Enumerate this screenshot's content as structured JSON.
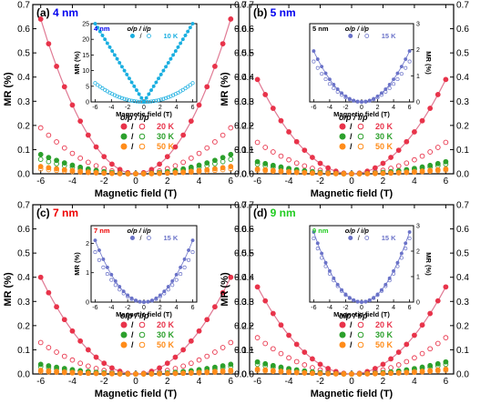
{
  "figure": {
    "ylabel_main": "MR (%)",
    "xlabel_main": "Magnetic field (T)",
    "ylabel_inset": "MR (%)",
    "xlabel_inset": "Magnetic field (T)",
    "legend_header": [
      "o/p",
      "/",
      "i/p"
    ],
    "colors": {
      "red": "#e8334a",
      "green": "#2ca02c",
      "orange": "#ff8c1a",
      "cyan": "#19aee0",
      "blue": "#6a72c8",
      "fit": "#e07a94",
      "title_blue": "#0000ee",
      "title_red": "#ee0000",
      "title_green": "#22cc22"
    }
  },
  "chart_data": [
    {
      "type": "scatter",
      "panel_label": "(a)",
      "thickness": "4 nm",
      "xlabel": "Magnetic field (T)",
      "ylabel": "MR (%)",
      "xlim": [
        -6.5,
        6.5
      ],
      "ylim": [
        0,
        0.7
      ],
      "xticks": [
        -6,
        -4,
        -2,
        0,
        2,
        4,
        6
      ],
      "yticks": [
        0.0,
        0.1,
        0.2,
        0.3,
        0.4,
        0.5,
        0.6,
        0.7
      ],
      "series": [
        {
          "name": "20 K",
          "out_of_plane_mr_at_6T": 0.64,
          "in_plane_mr_at_6T": 0.19
        },
        {
          "name": "30 K",
          "out_of_plane_mr_at_6T": 0.08,
          "in_plane_mr_at_6T": 0.06
        },
        {
          "name": "50 K",
          "out_of_plane_mr_at_6T": 0.03,
          "in_plane_mr_at_6T": 0.02
        }
      ],
      "inset": {
        "label": "4 nm",
        "series_name": "10 K",
        "xlim": [
          -6.5,
          6.5
        ],
        "xticks": [
          -6,
          -4,
          -2,
          0,
          2,
          4,
          6
        ],
        "ylim": [
          0,
          25
        ],
        "yticks": [
          0,
          5,
          10,
          15,
          20,
          25
        ],
        "yaxis_side": "left",
        "out_of_plane_mr_at_6T": 25,
        "in_plane_mr_at_6T": 6,
        "out_of_plane_shape": "linear"
      }
    },
    {
      "type": "scatter",
      "panel_label": "(b)",
      "thickness": "5 nm",
      "xlabel": "Magnetic field (T)",
      "ylabel": "MR (%)",
      "xlim": [
        -6.5,
        6.5
      ],
      "ylim": [
        0,
        0.7
      ],
      "xticks": [
        -6,
        -4,
        -2,
        0,
        2,
        4,
        6
      ],
      "yticks": [
        0.0,
        0.1,
        0.2,
        0.3,
        0.4,
        0.5,
        0.6,
        0.7
      ],
      "series": [
        {
          "name": "20 K",
          "out_of_plane_mr_at_6T": 0.39,
          "in_plane_mr_at_6T": 0.13
        },
        {
          "name": "30 K",
          "out_of_plane_mr_at_6T": 0.05,
          "in_plane_mr_at_6T": 0.04
        },
        {
          "name": "50 K",
          "out_of_plane_mr_at_6T": 0.02,
          "in_plane_mr_at_6T": 0.015
        }
      ],
      "inset": {
        "label": "5 nm",
        "series_name": "15 K",
        "xlim": [
          -6.5,
          6.5
        ],
        "xticks": [
          -6,
          -4,
          -2,
          0,
          2,
          4,
          6
        ],
        "ylim": [
          0,
          3
        ],
        "yticks": [
          0,
          1,
          2,
          3
        ],
        "yaxis_side": "right",
        "out_of_plane_mr_at_6T": 1.95,
        "in_plane_mr_at_6T": 1.55,
        "out_of_plane_shape": "quadratic"
      }
    },
    {
      "type": "scatter",
      "panel_label": "(c)",
      "thickness": "7 nm",
      "xlabel": "Magnetic field (T)",
      "ylabel": "MR (%)",
      "xlim": [
        -6.5,
        6.5
      ],
      "ylim": [
        0,
        0.7
      ],
      "xticks": [
        -6,
        -4,
        -2,
        0,
        2,
        4,
        6
      ],
      "yticks": [
        0.0,
        0.1,
        0.2,
        0.3,
        0.4,
        0.5,
        0.6,
        0.7
      ],
      "series": [
        {
          "name": "20 K",
          "out_of_plane_mr_at_6T": 0.4,
          "in_plane_mr_at_6T": 0.13
        },
        {
          "name": "30 K",
          "out_of_plane_mr_at_6T": 0.04,
          "in_plane_mr_at_6T": 0.03
        },
        {
          "name": "50 K",
          "out_of_plane_mr_at_6T": 0.015,
          "in_plane_mr_at_6T": 0.01
        }
      ],
      "inset": {
        "label": "7 nm",
        "series_name": "15 K",
        "xlim": [
          -6.5,
          6.5
        ],
        "xticks": [
          -6,
          -4,
          -2,
          0,
          2,
          4,
          6
        ],
        "ylim": [
          0,
          2.6
        ],
        "yticks": [
          0,
          1,
          2
        ],
        "yaxis_side": "left",
        "out_of_plane_mr_at_6T": 2.1,
        "in_plane_mr_at_6T": 1.7,
        "out_of_plane_shape": "quadratic"
      }
    },
    {
      "type": "scatter",
      "panel_label": "(d)",
      "thickness": "9 nm",
      "xlabel": "Magnetic field (T)",
      "ylabel": "MR (%)",
      "xlim": [
        -6.5,
        6.5
      ],
      "ylim": [
        0,
        0.7
      ],
      "xticks": [
        -6,
        -4,
        -2,
        0,
        2,
        4,
        6
      ],
      "yticks": [
        0.0,
        0.1,
        0.2,
        0.3,
        0.4,
        0.5,
        0.6,
        0.7
      ],
      "series": [
        {
          "name": "20 K",
          "out_of_plane_mr_at_6T": 0.36,
          "in_plane_mr_at_6T": 0.15
        },
        {
          "name": "30 K",
          "out_of_plane_mr_at_6T": 0.05,
          "in_plane_mr_at_6T": 0.04
        },
        {
          "name": "50 K",
          "out_of_plane_mr_at_6T": 0.02,
          "in_plane_mr_at_6T": 0.015
        }
      ],
      "inset": {
        "label": "9 nm",
        "series_name": "15 K",
        "xlim": [
          -6.5,
          6.5
        ],
        "xticks": [
          -6,
          -4,
          -2,
          0,
          2,
          4,
          6
        ],
        "ylim": [
          0,
          3
        ],
        "yticks": [
          0,
          1,
          2,
          3
        ],
        "yaxis_side": "right",
        "out_of_plane_mr_at_6T": 2.75,
        "in_plane_mr_at_6T": 2.5,
        "out_of_plane_shape": "quadratic"
      }
    }
  ]
}
